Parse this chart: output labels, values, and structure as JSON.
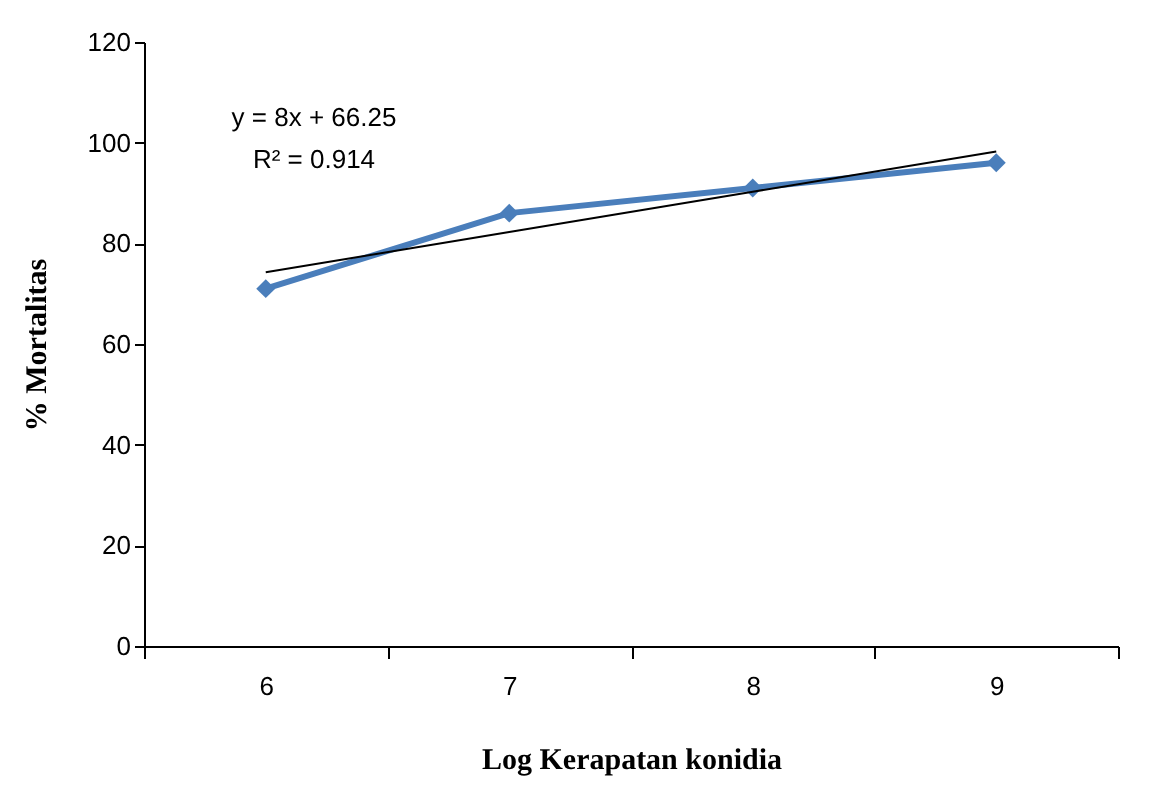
{
  "chart_data": {
    "type": "line",
    "xlabel": "Log Kerapatan konidia",
    "ylabel": "% Mortalitas",
    "categories": [
      "6",
      "7",
      "8",
      "9"
    ],
    "ylim": [
      0,
      120
    ],
    "yticks": [
      0,
      20,
      40,
      60,
      80,
      100,
      120
    ],
    "marker": "diamond",
    "annotations": [
      "y = 8x + 66.25",
      "R² = 0.914"
    ],
    "series": [
      {
        "color": "#4a7ebb",
        "values": [
          71,
          86,
          91,
          96
        ]
      },
      {
        "type": "line",
        "color": "#000000",
        "values": [
          74.25,
          82.25,
          90.25,
          98.25
        ],
        "marker": "none"
      }
    ]
  }
}
